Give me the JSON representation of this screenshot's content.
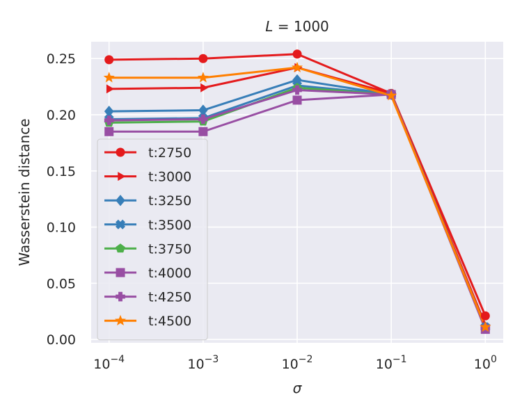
{
  "chart_data": {
    "type": "line",
    "title": "L = 1000",
    "xlabel": "σ",
    "ylabel": "Wasserstein distance",
    "x_scale": "log",
    "x": [
      0.0001,
      0.001,
      0.01,
      0.1,
      1
    ],
    "x_tick_labels": [
      {
        "base": "10",
        "exp": "−4"
      },
      {
        "base": "10",
        "exp": "−3"
      },
      {
        "base": "10",
        "exp": "−2"
      },
      {
        "base": "10",
        "exp": "−1"
      },
      {
        "base": "10",
        "exp": "0"
      }
    ],
    "y_ticks": [
      0.0,
      0.05,
      0.1,
      0.15,
      0.2,
      0.25
    ],
    "y_tick_labels": [
      "0.00",
      "0.05",
      "0.10",
      "0.15",
      "0.20",
      "0.25"
    ],
    "ylim": [
      -0.003,
      0.265
    ],
    "grid": true,
    "legend_position": "center-left",
    "background": "#eaeaf2",
    "series": [
      {
        "name": "t:2750",
        "color": "#e41a1c",
        "marker": "circle",
        "values": [
          0.249,
          0.25,
          0.254,
          0.219,
          0.021
        ]
      },
      {
        "name": "t:3000",
        "color": "#e41a1c",
        "marker": "triangle-right",
        "values": [
          0.223,
          0.224,
          0.242,
          0.219,
          0.013
        ]
      },
      {
        "name": "t:3250",
        "color": "#377eb8",
        "marker": "diamond",
        "values": [
          0.203,
          0.204,
          0.231,
          0.218,
          0.011
        ]
      },
      {
        "name": "t:3500",
        "color": "#377eb8",
        "marker": "x-filled",
        "values": [
          0.196,
          0.197,
          0.226,
          0.218,
          0.011
        ]
      },
      {
        "name": "t:3750",
        "color": "#4daf4a",
        "marker": "pentagon",
        "values": [
          0.193,
          0.194,
          0.224,
          0.218,
          0.01
        ]
      },
      {
        "name": "t:4000",
        "color": "#984ea3",
        "marker": "square",
        "values": [
          0.185,
          0.185,
          0.213,
          0.218,
          0.009
        ]
      },
      {
        "name": "t:4250",
        "color": "#984ea3",
        "marker": "plus-filled",
        "values": [
          0.195,
          0.196,
          0.222,
          0.218,
          0.01
        ]
      },
      {
        "name": "t:4500",
        "color": "#ff7f00",
        "marker": "star",
        "values": [
          0.233,
          0.233,
          0.242,
          0.217,
          0.011
        ]
      }
    ]
  }
}
